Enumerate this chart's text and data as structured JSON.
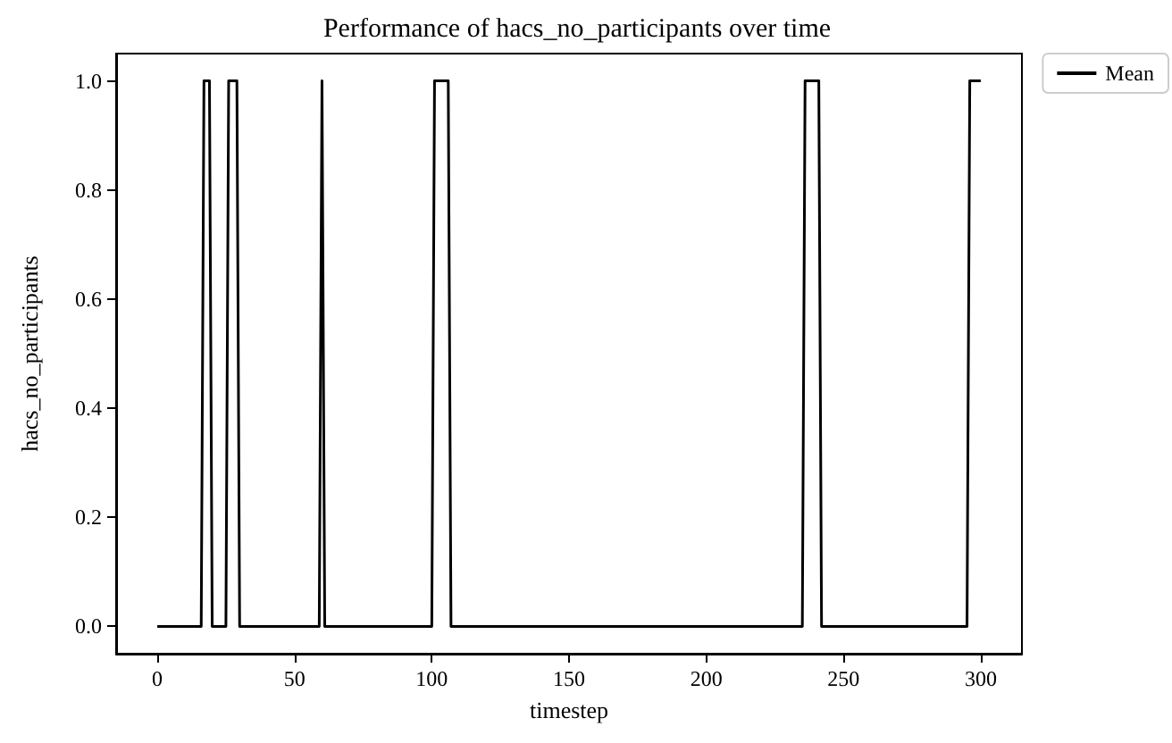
{
  "chart_data": {
    "type": "line",
    "title": "Performance of hacs_no_participants over time",
    "xlabel": "timestep",
    "ylabel": "hacs_no_participants",
    "x": [
      0,
      16,
      17,
      19,
      20,
      25,
      26,
      29,
      30,
      59,
      60,
      61,
      100,
      101,
      106,
      107,
      235,
      236,
      241,
      242,
      295,
      296,
      300
    ],
    "series": [
      {
        "name": "Mean",
        "color": "#000000",
        "values": [
          0,
          0,
          1,
          1,
          0,
          0,
          1,
          1,
          0,
          0,
          1,
          0,
          0,
          1,
          1,
          0,
          0,
          1,
          1,
          0,
          0,
          1,
          1
        ]
      }
    ],
    "xlim": [
      -15,
      315
    ],
    "xticks": [
      0,
      50,
      100,
      150,
      200,
      250,
      300
    ],
    "ylim": [
      -0.05,
      1.05
    ],
    "yticks": [
      {
        "value": 0,
        "label": "0.0"
      },
      {
        "value": 0.2,
        "label": "0.2"
      },
      {
        "value": 0.4,
        "label": "0.4"
      },
      {
        "value": 0.6,
        "label": "0.6"
      },
      {
        "value": 0.8,
        "label": "0.8"
      },
      {
        "value": 1,
        "label": "1.0"
      }
    ],
    "grid": false,
    "legend": "top right",
    "marker": "none",
    "line_style": "solid"
  }
}
